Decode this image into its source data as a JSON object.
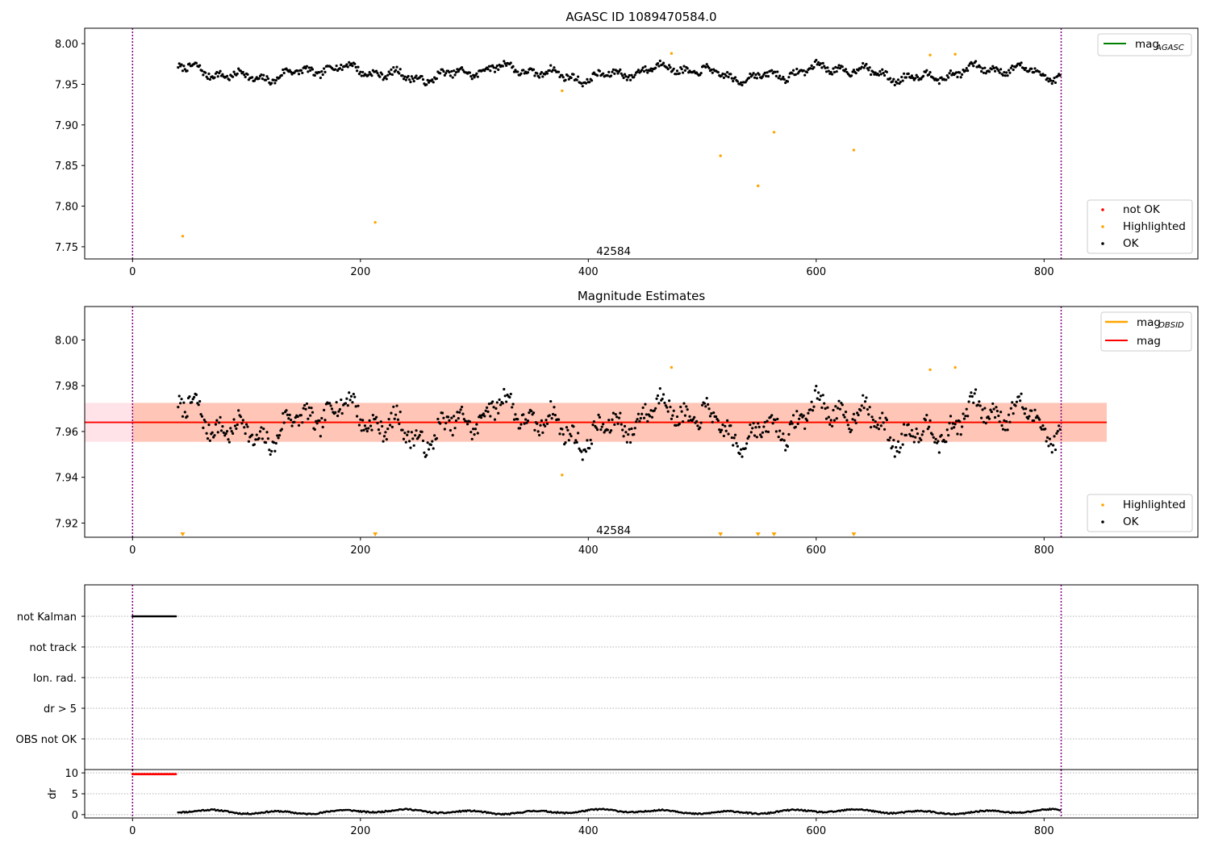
{
  "chart_data": [
    {
      "id": "agasc_panel",
      "type": "scatter",
      "title": "AGASC ID 1089470584.0",
      "xlim": [
        -42,
        935
      ],
      "ylim": [
        7.735,
        8.019
      ],
      "xticks": [
        0,
        200,
        400,
        600,
        800
      ],
      "yticks": [
        7.75,
        7.8,
        7.85,
        7.9,
        7.95,
        8.0
      ],
      "ytick_labels": [
        "7.75",
        "7.80",
        "7.85",
        "7.90",
        "7.95",
        "8.00"
      ],
      "vlines": [
        0,
        815
      ],
      "annotation": {
        "text": "42584",
        "x": 407,
        "y": 7.745
      },
      "series_ok": {
        "name": "OK",
        "color": "#000000",
        "x_start": 40,
        "x_end": 814,
        "step": 1,
        "baseline": 7.964,
        "amplitude": 0.013
      },
      "series_highlighted": {
        "name": "Highlighted",
        "color": "#ffa500",
        "points": [
          [
            44,
            7.763
          ],
          [
            213,
            7.78
          ],
          [
            377,
            7.942
          ],
          [
            473,
            7.988
          ],
          [
            516,
            7.862
          ],
          [
            549,
            7.825
          ],
          [
            563,
            7.891
          ],
          [
            633,
            7.869
          ],
          [
            700,
            7.986
          ],
          [
            722,
            7.987
          ]
        ]
      },
      "series_not_ok": {
        "name": "not OK",
        "color": "#ff0000",
        "points": []
      },
      "legend_top": {
        "placement": "top-right",
        "entries": [
          {
            "label": "mag",
            "sub": "AGASC",
            "color": "#008000"
          }
        ]
      },
      "legend_bottom": {
        "placement": "bottom-right",
        "entries": [
          {
            "label": "not OK",
            "color": "#ff0000"
          },
          {
            "label": "Highlighted",
            "color": "#ffa500"
          },
          {
            "label": "OK",
            "color": "#000000"
          }
        ]
      }
    },
    {
      "id": "estimates_panel",
      "type": "scatter",
      "title": "Magnitude Estimates",
      "xlim": [
        -42,
        935
      ],
      "ylim": [
        7.9138,
        8.0146
      ],
      "xticks": [
        0,
        200,
        400,
        600,
        800
      ],
      "yticks": [
        7.92,
        7.94,
        7.96,
        7.98,
        8.0
      ],
      "ytick_labels": [
        "7.92",
        "7.94",
        "7.96",
        "7.98",
        "8.00"
      ],
      "vlines": [
        0,
        815
      ],
      "annotation": {
        "text": "42584",
        "x": 407,
        "y": 7.917
      },
      "mag_line": {
        "name": "mag",
        "color": "#ff0000",
        "value": 7.964
      },
      "mag_obsid_line": {
        "name": "mag",
        "sub": "OBSID",
        "color": "#ffa500",
        "value": 7.964,
        "x_start": 0,
        "x_end": 855
      },
      "band_pink": {
        "low": 7.9555,
        "high": 7.9725,
        "x_start": -42,
        "x_end": 855,
        "color": "#ffc0cb"
      },
      "band_orange": {
        "low": 7.9555,
        "high": 7.9725,
        "x_start": 0,
        "x_end": 855,
        "color": "#ffa07a"
      },
      "series_ok": {
        "name": "OK",
        "color": "#000000",
        "x_start": 40,
        "x_end": 814,
        "step": 1,
        "baseline": 7.964,
        "amplitude": 0.013
      },
      "series_highlighted": {
        "name": "Highlighted",
        "color": "#ffa500",
        "points": [
          [
            377,
            7.941
          ],
          [
            473,
            7.988
          ],
          [
            700,
            7.987
          ],
          [
            722,
            7.988
          ]
        ]
      },
      "out_of_range_markers": {
        "color": "#ffa500",
        "x": [
          44,
          213,
          516,
          549,
          563,
          633
        ]
      },
      "legend_top": {
        "placement": "top-right",
        "entries": [
          {
            "label": "mag",
            "sub": "OBSID",
            "color": "#ffa500"
          },
          {
            "label": "mag",
            "sub": "",
            "color": "#ff0000"
          }
        ]
      },
      "legend_bottom": {
        "placement": "bottom-right",
        "entries": [
          {
            "label": "Highlighted",
            "color": "#ffa500"
          },
          {
            "label": "OK",
            "color": "#000000"
          }
        ]
      }
    },
    {
      "id": "flags_panel",
      "type": "scatter",
      "xlim": [
        -42,
        935
      ],
      "categories": [
        "not Kalman",
        "not track",
        "Ion. rad.",
        "dr > 5",
        "OBS not OK"
      ],
      "flag_rows": [
        {
          "row": "not Kalman",
          "x_start": 0,
          "x_end": 38,
          "step": 1
        }
      ],
      "vlines": [
        0,
        815
      ]
    },
    {
      "id": "dr_panel",
      "type": "scatter",
      "ylabel": "dr",
      "xlim": [
        -42,
        935
      ],
      "ylim": [
        -0.8,
        10.8
      ],
      "xticks": [
        0,
        200,
        400,
        600,
        800
      ],
      "yticks": [
        0,
        5,
        10
      ],
      "ytick_labels": [
        "0",
        "5",
        "10"
      ],
      "vlines": [
        0,
        815
      ],
      "series_red": {
        "color": "#ff0000",
        "x_start": 0,
        "x_end": 38,
        "step": 1,
        "value": 9.7
      },
      "series_dr": {
        "color": "#000000",
        "x_start": 40,
        "x_end": 814,
        "step": 1,
        "baseline": 0.7
      }
    }
  ]
}
